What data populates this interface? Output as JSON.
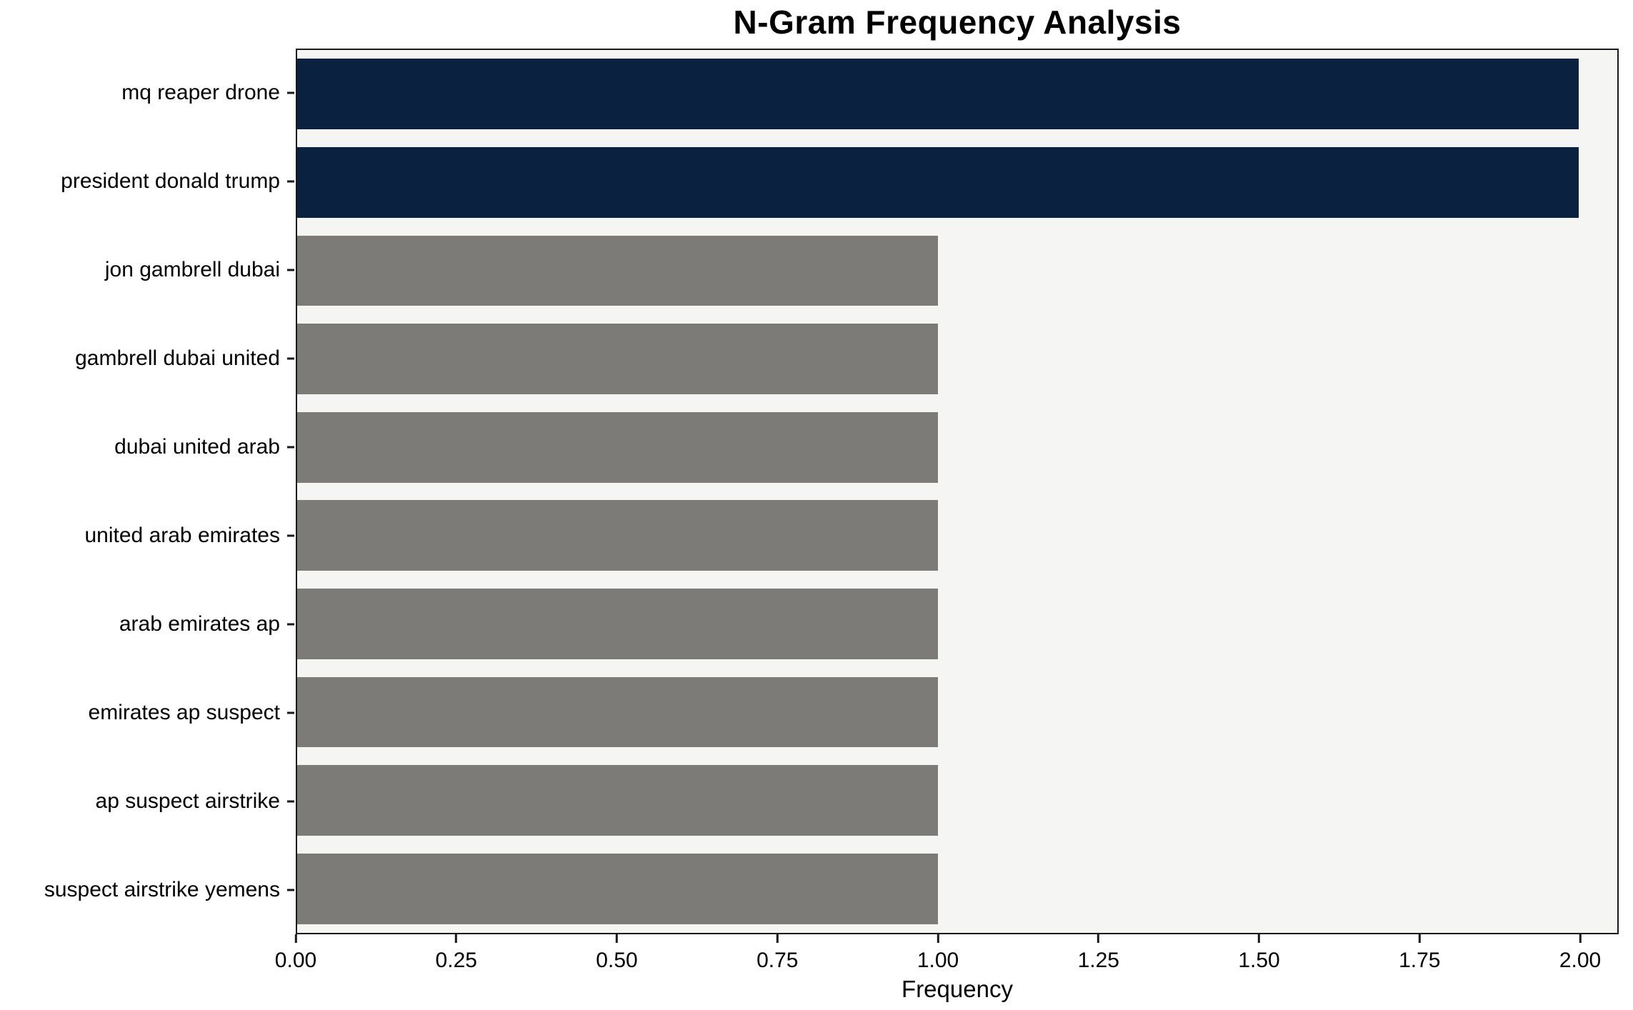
{
  "chart_data": {
    "type": "bar",
    "orientation": "horizontal",
    "title": "N-Gram Frequency Analysis",
    "xlabel": "Frequency",
    "ylabel": "",
    "categories": [
      "mq reaper drone",
      "president donald trump",
      "jon gambrell dubai",
      "gambrell dubai united",
      "dubai united arab",
      "united arab emirates",
      "arab emirates ap",
      "emirates ap suspect",
      "ap suspect airstrike",
      "suspect airstrike yemens"
    ],
    "values": [
      2,
      2,
      1,
      1,
      1,
      1,
      1,
      1,
      1,
      1
    ],
    "xlim": [
      0,
      2.06
    ],
    "xtick_values": [
      0,
      0.25,
      0.5,
      0.75,
      1.0,
      1.25,
      1.5,
      1.75,
      2.0
    ],
    "xtick_labels": [
      "0.00",
      "0.25",
      "0.50",
      "0.75",
      "1.00",
      "1.25",
      "1.50",
      "1.75",
      "2.00"
    ],
    "bar_colors": [
      "#0a2240",
      "#0a2240",
      "#7d7b77",
      "#7d7b77",
      "#7d7b77",
      "#7d7b77",
      "#7d7b77",
      "#7d7b77",
      "#7d7b77",
      "#7d7b77"
    ],
    "colors": {
      "highlight": "#0a2240",
      "default_bar": "#7d7b77",
      "plot_background": "#f5f5f4",
      "spine": "#1a1a1a"
    },
    "grid": false,
    "legend": null
  }
}
